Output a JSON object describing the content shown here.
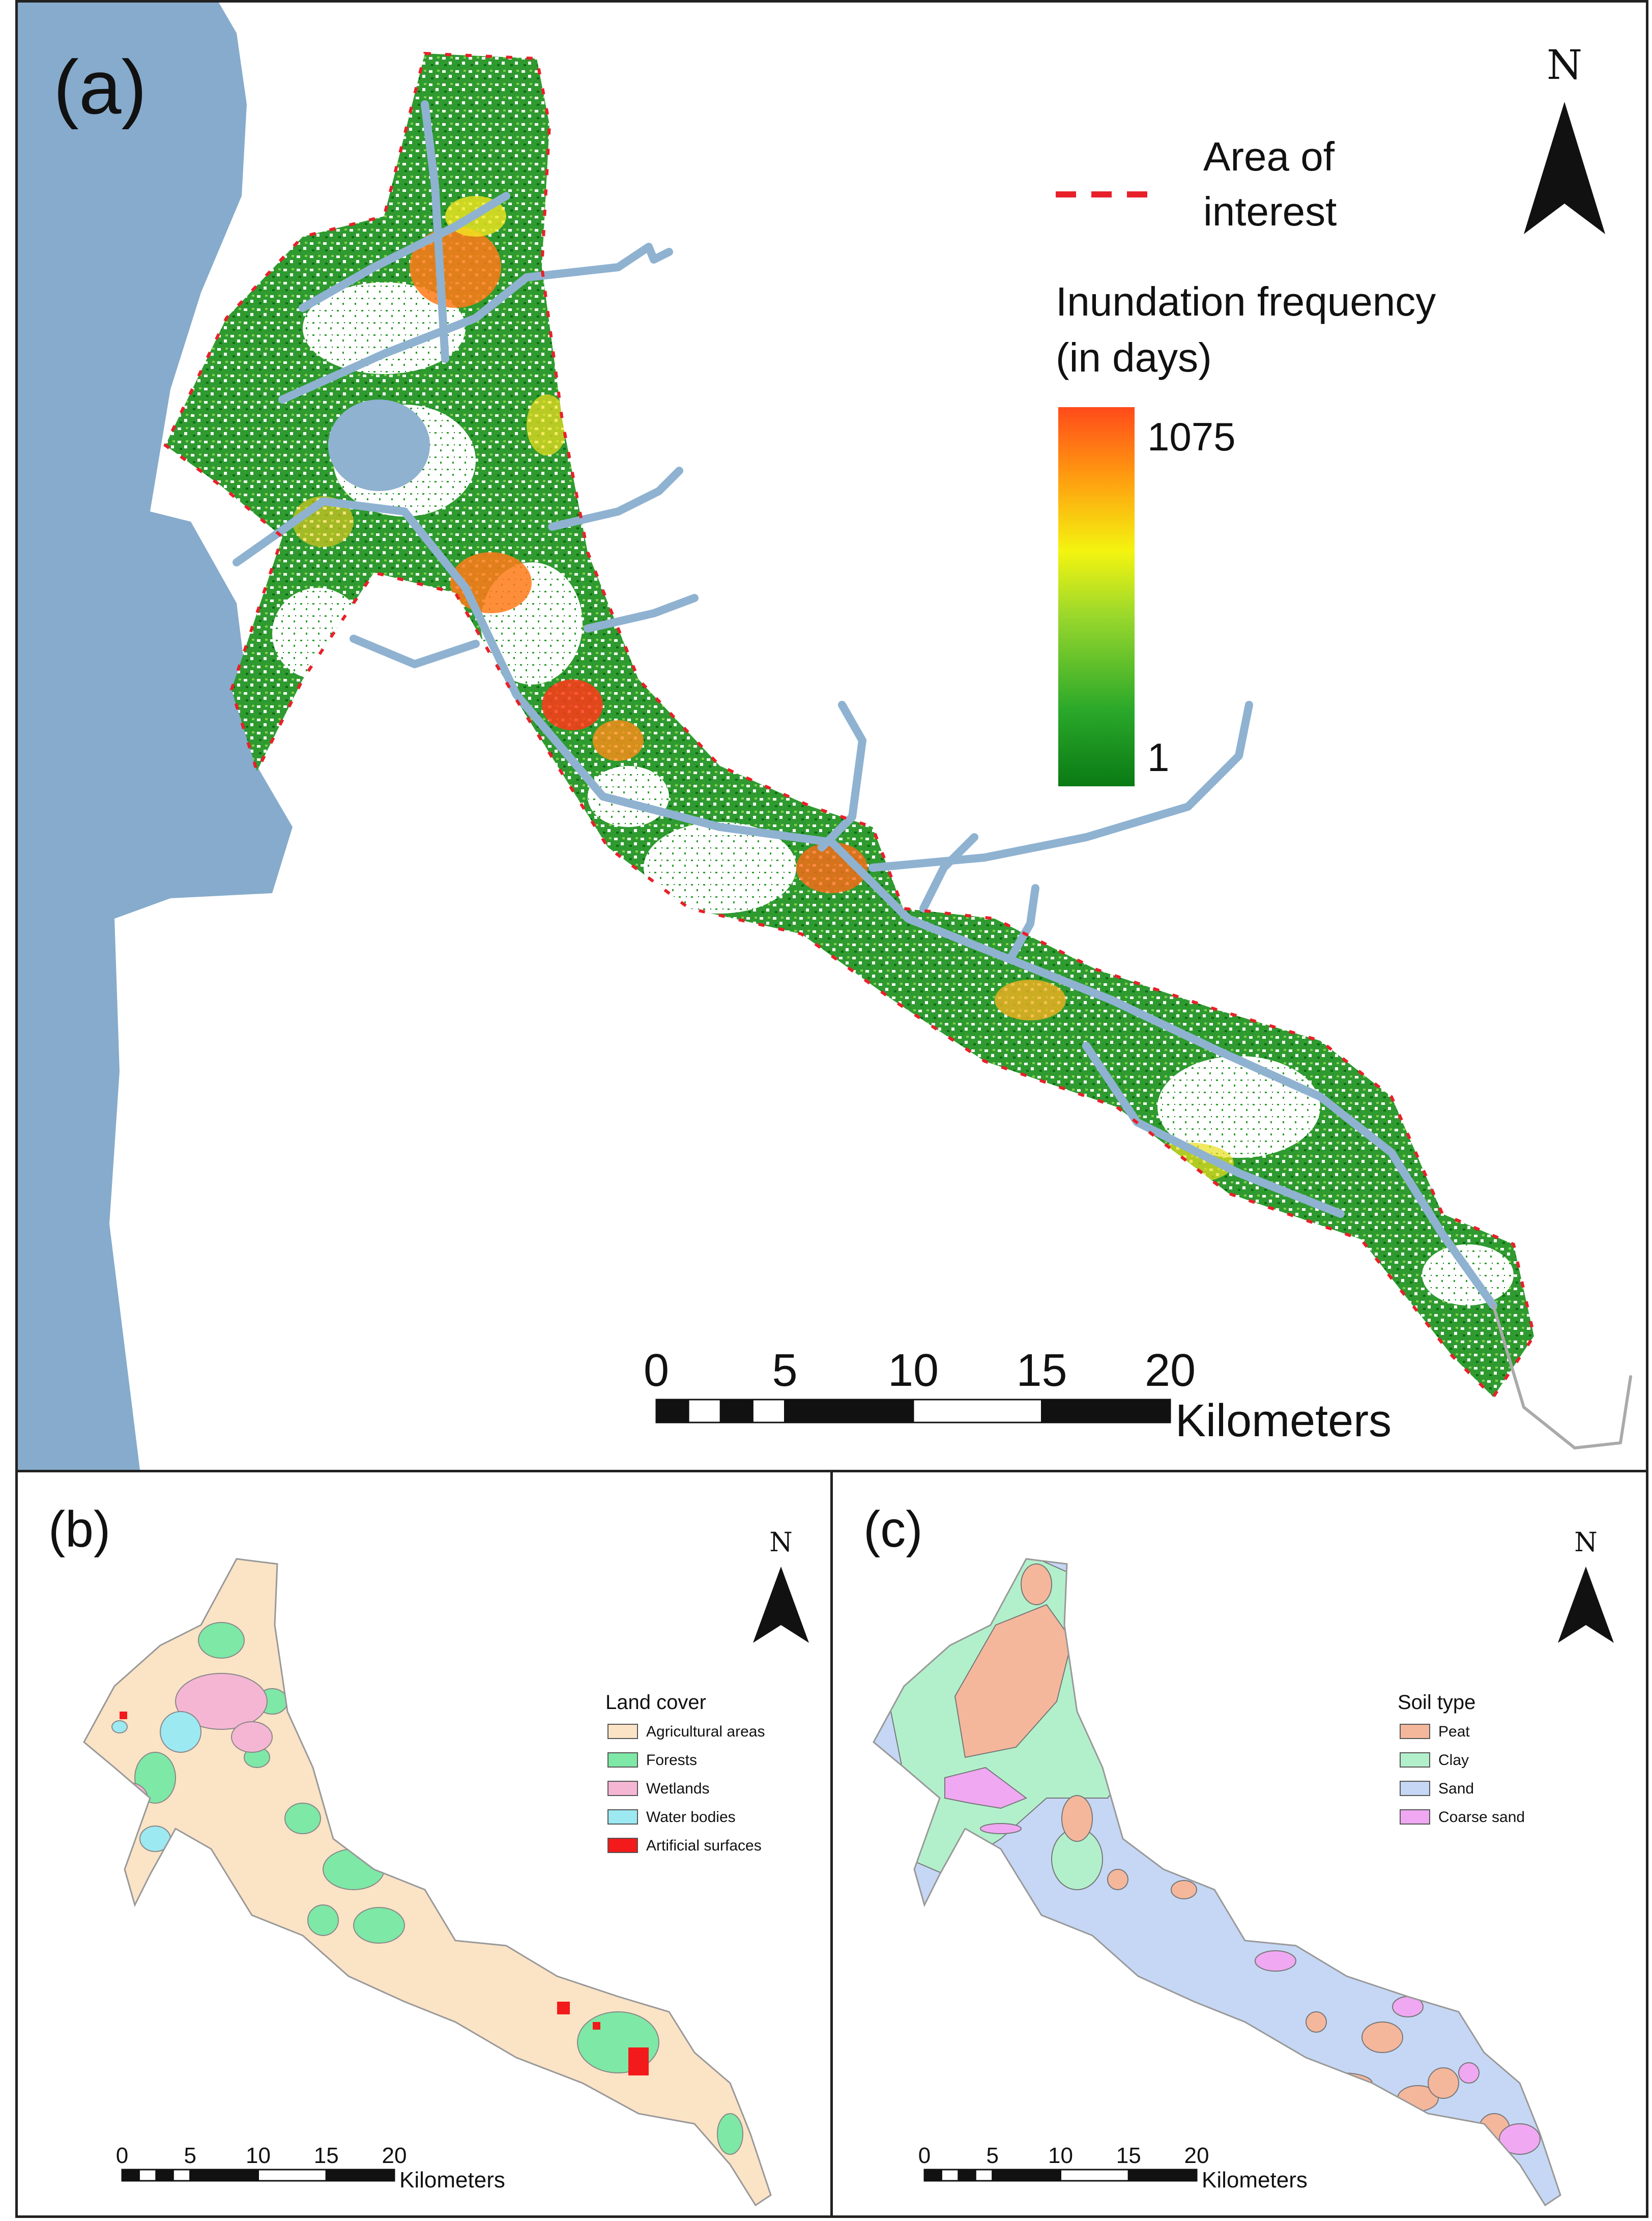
{
  "panel_a": {
    "label": "(a)",
    "north": "N",
    "legend": {
      "aoi_label_line1": "Area of",
      "aoi_label_line2": "interest",
      "title_line1": "Inundation frequency",
      "title_line2": "(in days)",
      "max_value": "1075",
      "min_value": "1",
      "ramp_colors": [
        "#ff4a1a",
        "#ff9a10",
        "#f4f410",
        "#9ad82c",
        "#2aa82a",
        "#0a7a14"
      ]
    },
    "scalebar": {
      "ticks": [
        "0",
        "5",
        "10",
        "15",
        "20"
      ],
      "unit": "Kilometers"
    },
    "colors": {
      "sea": "#86abcc",
      "river": "#8fb2d1",
      "aoi_boundary": "#e8202a"
    }
  },
  "panel_b": {
    "label": "(b)",
    "north": "N",
    "legend": {
      "title": "Land cover",
      "items": [
        {
          "label": "Agricultural areas",
          "color": "#fbe3c6"
        },
        {
          "label": "Forests",
          "color": "#7ee8a6"
        },
        {
          "label": "Wetlands",
          "color": "#f5b6d4"
        },
        {
          "label": "Water bodies",
          "color": "#9ce9f2"
        },
        {
          "label": "Artificial surfaces",
          "color": "#f21a1a"
        }
      ]
    },
    "scalebar": {
      "ticks": [
        "0",
        "5",
        "10",
        "15",
        "20"
      ],
      "unit": "Kilometers"
    }
  },
  "panel_c": {
    "label": "(c)",
    "north": "N",
    "legend": {
      "title": "Soil type",
      "items": [
        {
          "label": "Peat",
          "color": "#f5b79c"
        },
        {
          "label": "Clay",
          "color": "#b2f0cc"
        },
        {
          "label": "Sand",
          "color": "#c5d7f4"
        },
        {
          "label": "Coarse sand",
          "color": "#f0a8f2"
        }
      ]
    },
    "scalebar": {
      "ticks": [
        "0",
        "5",
        "10",
        "15",
        "20"
      ],
      "unit": "Kilometers"
    }
  }
}
